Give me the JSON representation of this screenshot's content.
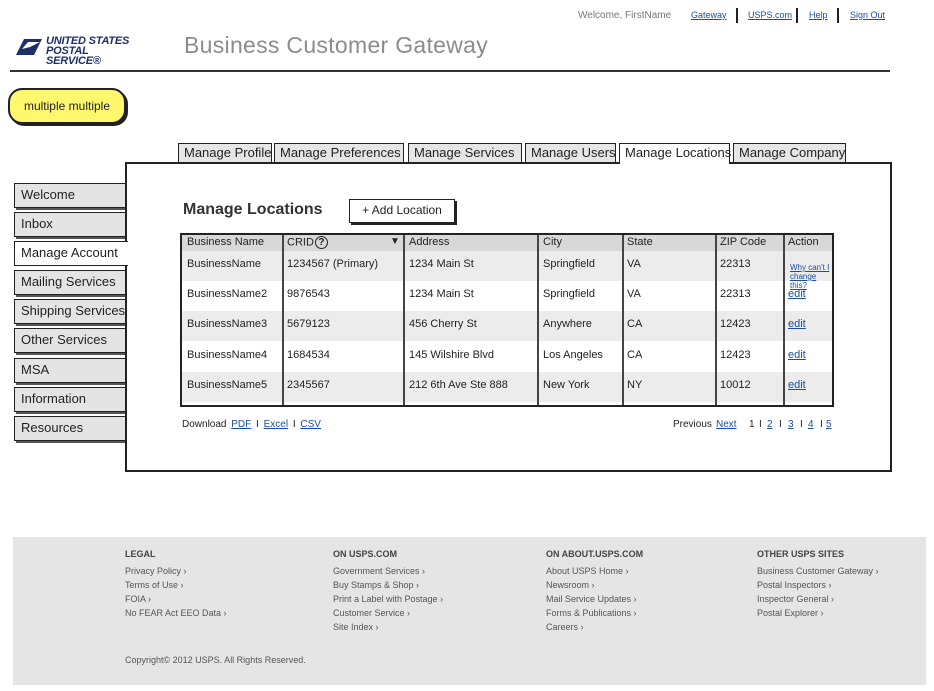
{
  "header": {
    "welcome": "Welcome, FirstName",
    "links": [
      "Gateway",
      "USPS.com",
      "Help",
      "Sign Out"
    ],
    "logo_text_line1": "UNITED STATES",
    "logo_text_line2": "POSTAL SERVICE®",
    "title": "Business Customer Gateway"
  },
  "sticky_note": "multiple multiple",
  "tabs": [
    {
      "label": "Manage Profile"
    },
    {
      "label": "Manage Preferences"
    },
    {
      "label": "Manage Services"
    },
    {
      "label": "Manage Users"
    },
    {
      "label": "Manage Locations",
      "active": true
    },
    {
      "label": "Manage Company"
    }
  ],
  "sidebar": {
    "items": [
      {
        "label": "Welcome"
      },
      {
        "label": "Inbox"
      },
      {
        "label": "Manage Account",
        "active": true
      },
      {
        "label": "Mailing Services"
      },
      {
        "label": "Shipping Services"
      },
      {
        "label": "Other Services"
      },
      {
        "label": "MSA"
      },
      {
        "label": "Information"
      },
      {
        "label": "Resources"
      }
    ]
  },
  "main": {
    "title": "Manage Locations",
    "add_button": "+ Add Location",
    "table": {
      "headers": [
        "Business Name",
        "CRID",
        "Address",
        "City",
        "State",
        "ZIP Code",
        "Action"
      ],
      "crid_help_icon": "?",
      "sort_icon": "▼",
      "rows": [
        {
          "name": "BusinessName",
          "crid": "1234567 (Primary)",
          "address": "1234 Main St",
          "city": "Springfield",
          "state": "VA",
          "zip": "22313",
          "action": "Why can't I change this?"
        },
        {
          "name": "BusinessName2",
          "crid": "9876543",
          "address": "1234 Main St",
          "city": "Springfield",
          "state": "VA",
          "zip": "22313",
          "action": "edit"
        },
        {
          "name": "BusinessName3",
          "crid": "5679123",
          "address": "456 Cherry St",
          "city": "Anywhere",
          "state": "CA",
          "zip": "12423",
          "action": "edit"
        },
        {
          "name": "BusinessName4",
          "crid": "1684534",
          "address": "145 Wilshire Blvd",
          "city": "Los Angeles",
          "state": "CA",
          "zip": "12423",
          "action": "edit"
        },
        {
          "name": "BusinessName5",
          "crid": "2345567",
          "address": "212 6th Ave Ste 888",
          "city": "New York",
          "state": "NY",
          "zip": "10012",
          "action": "edit"
        }
      ]
    },
    "download": {
      "label": "Download",
      "pdf": "PDF",
      "excel": "Excel",
      "csv": "CSV",
      "sep": "I"
    },
    "pager": {
      "previous": "Previous",
      "next": "Next",
      "current": "1",
      "pages": [
        "2",
        "3",
        "4",
        "5"
      ],
      "sep": "I"
    }
  },
  "footer": {
    "columns": [
      {
        "heading": "LEGAL",
        "items": [
          "Privacy Policy ›",
          "Terms of Use ›",
          "FOIA ›",
          "No FEAR Act EEO Data ›"
        ]
      },
      {
        "heading": "ON USPS.COM",
        "items": [
          "Government Services ›",
          "Buy Stamps & Shop ›",
          "Print a Label with Postage ›",
          "Customer Service ›",
          "Site Index ›"
        ]
      },
      {
        "heading": "ON ABOUT.USPS.COM",
        "items": [
          "About USPS Home ›",
          "Newsroom ›",
          "Mail Service Updates ›",
          "Forms & Publications ›",
          "Careers ›"
        ]
      },
      {
        "heading": "OTHER USPS SITES",
        "items": [
          "Business Customer Gateway ›",
          "Postal Inspectors ›",
          "Inspector General ›",
          "Postal Explorer ›"
        ]
      }
    ],
    "copyright": "Copyright© 2012 USPS. All Rights Reserved."
  },
  "colors": {
    "sticky": "#fff86e",
    "link": "#1a4ea0",
    "footer_bg": "#e5e5e5"
  }
}
